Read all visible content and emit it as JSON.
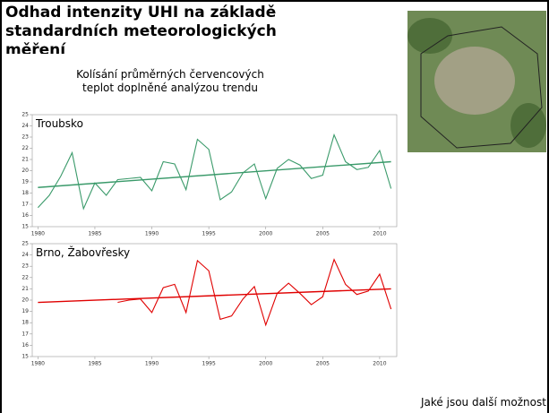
{
  "title": "Odhad intenzity UHI na základě standardních meteorologických měření",
  "subtitle": "Kolísání průměrných červencových teplot doplněné analýzou trendu",
  "footer": "Jaké jsou další možnosti odhadu intenzity UHI?",
  "chart_data": [
    {
      "type": "line",
      "title": "Troubsko",
      "x": [
        1980,
        1981,
        1982,
        1983,
        1984,
        1985,
        1986,
        1987,
        1988,
        1989,
        1990,
        1991,
        1992,
        1993,
        1994,
        1995,
        1996,
        1997,
        1998,
        1999,
        2000,
        2001,
        2002,
        2003,
        2004,
        2005,
        2006,
        2007,
        2008,
        2009,
        2010,
        2011
      ],
      "series": [
        {
          "color": "#3a9a6a",
          "values": [
            16.7,
            17.8,
            19.5,
            21.6,
            16.6,
            18.9,
            17.8,
            19.2,
            19.3,
            19.4,
            18.2,
            20.8,
            20.6,
            18.3,
            22.8,
            21.9,
            17.4,
            18.1,
            19.8,
            20.6,
            17.5,
            20.2,
            21.0,
            20.5,
            19.3,
            19.6,
            23.2,
            20.8,
            20.1,
            20.3,
            21.8,
            18.4
          ]
        },
        {
          "color": "#3a9a6a",
          "x": [
            1980,
            2011
          ],
          "values": [
            18.5,
            20.8
          ]
        }
      ],
      "xlim": [
        1979.5,
        2011.5
      ],
      "xticks": [
        1980,
        1985,
        1990,
        1995,
        2000,
        2005,
        2010
      ],
      "ylim": [
        15,
        25
      ],
      "yticks": [
        15,
        16,
        17,
        18,
        19,
        20,
        21,
        22,
        23,
        24,
        25
      ]
    },
    {
      "type": "line",
      "title": "Brno, Žabovřesky",
      "x": [
        1980,
        1981,
        1982,
        1983,
        1984,
        1985,
        1986,
        1987,
        1988,
        1989,
        1990,
        1991,
        1992,
        1993,
        1994,
        1995,
        1996,
        1997,
        1998,
        1999,
        2000,
        2001,
        2002,
        2003,
        2004,
        2005,
        2006,
        2007,
        2008,
        2009,
        2010,
        2011
      ],
      "series": [
        {
          "color": "#e00000",
          "values": [
            null,
            null,
            null,
            null,
            null,
            null,
            null,
            19.8,
            20.0,
            20.1,
            18.9,
            21.1,
            21.4,
            18.9,
            23.5,
            22.6,
            18.3,
            18.6,
            20.1,
            21.2,
            17.8,
            20.6,
            21.5,
            20.6,
            19.6,
            20.3,
            23.6,
            21.4,
            20.5,
            20.8,
            22.3,
            19.2
          ]
        },
        {
          "color": "#e00000",
          "x": [
            1980,
            2011
          ],
          "values": [
            19.8,
            21.0
          ]
        }
      ],
      "xlim": [
        1979.5,
        2011.5
      ],
      "xticks": [
        1980,
        1985,
        1990,
        1995,
        2000,
        2005,
        2010
      ],
      "ylim": [
        15,
        25
      ],
      "yticks": [
        15,
        16,
        17,
        18,
        19,
        20,
        21,
        22,
        23,
        24,
        25
      ]
    }
  ]
}
